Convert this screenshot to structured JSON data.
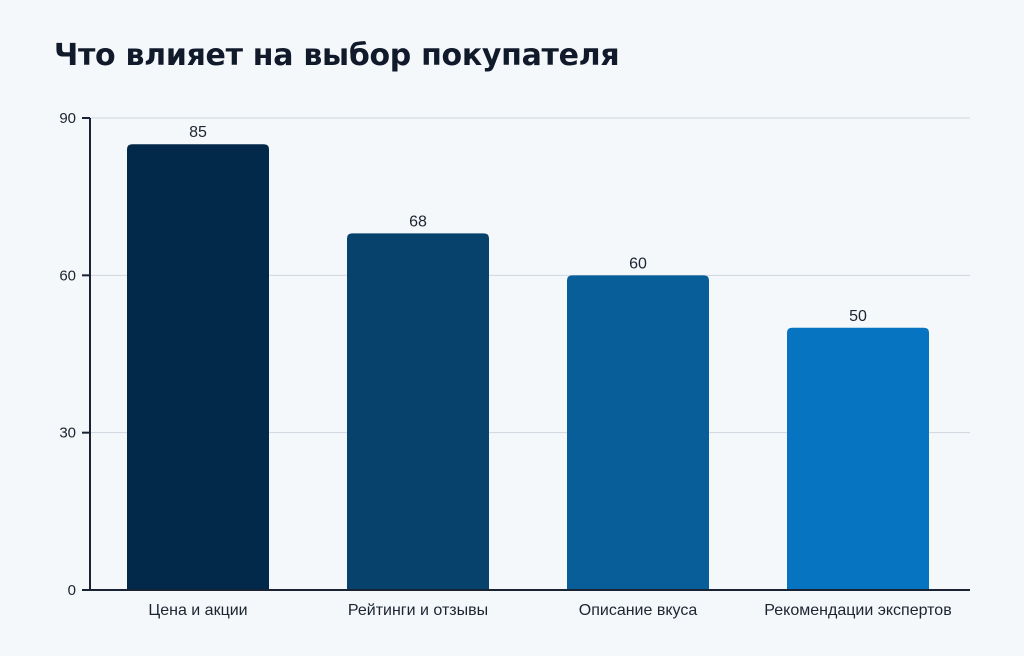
{
  "chart_data": {
    "type": "bar",
    "title": "Что влияет на выбор покупателя",
    "categories": [
      "Цена и акции",
      "Рейтинги и отзывы",
      "Описание вкуса",
      "Рекомендации экспертов"
    ],
    "values": [
      85,
      68,
      60,
      50
    ],
    "ylim": [
      0,
      90
    ],
    "yticks": [
      0,
      30,
      60,
      90
    ],
    "grid": true,
    "bar_colors": [
      "#03294a",
      "#07426d",
      "#085e98",
      "#0674c1"
    ],
    "grid_color": "#cfd6de",
    "axis_color": "#1a2333"
  }
}
